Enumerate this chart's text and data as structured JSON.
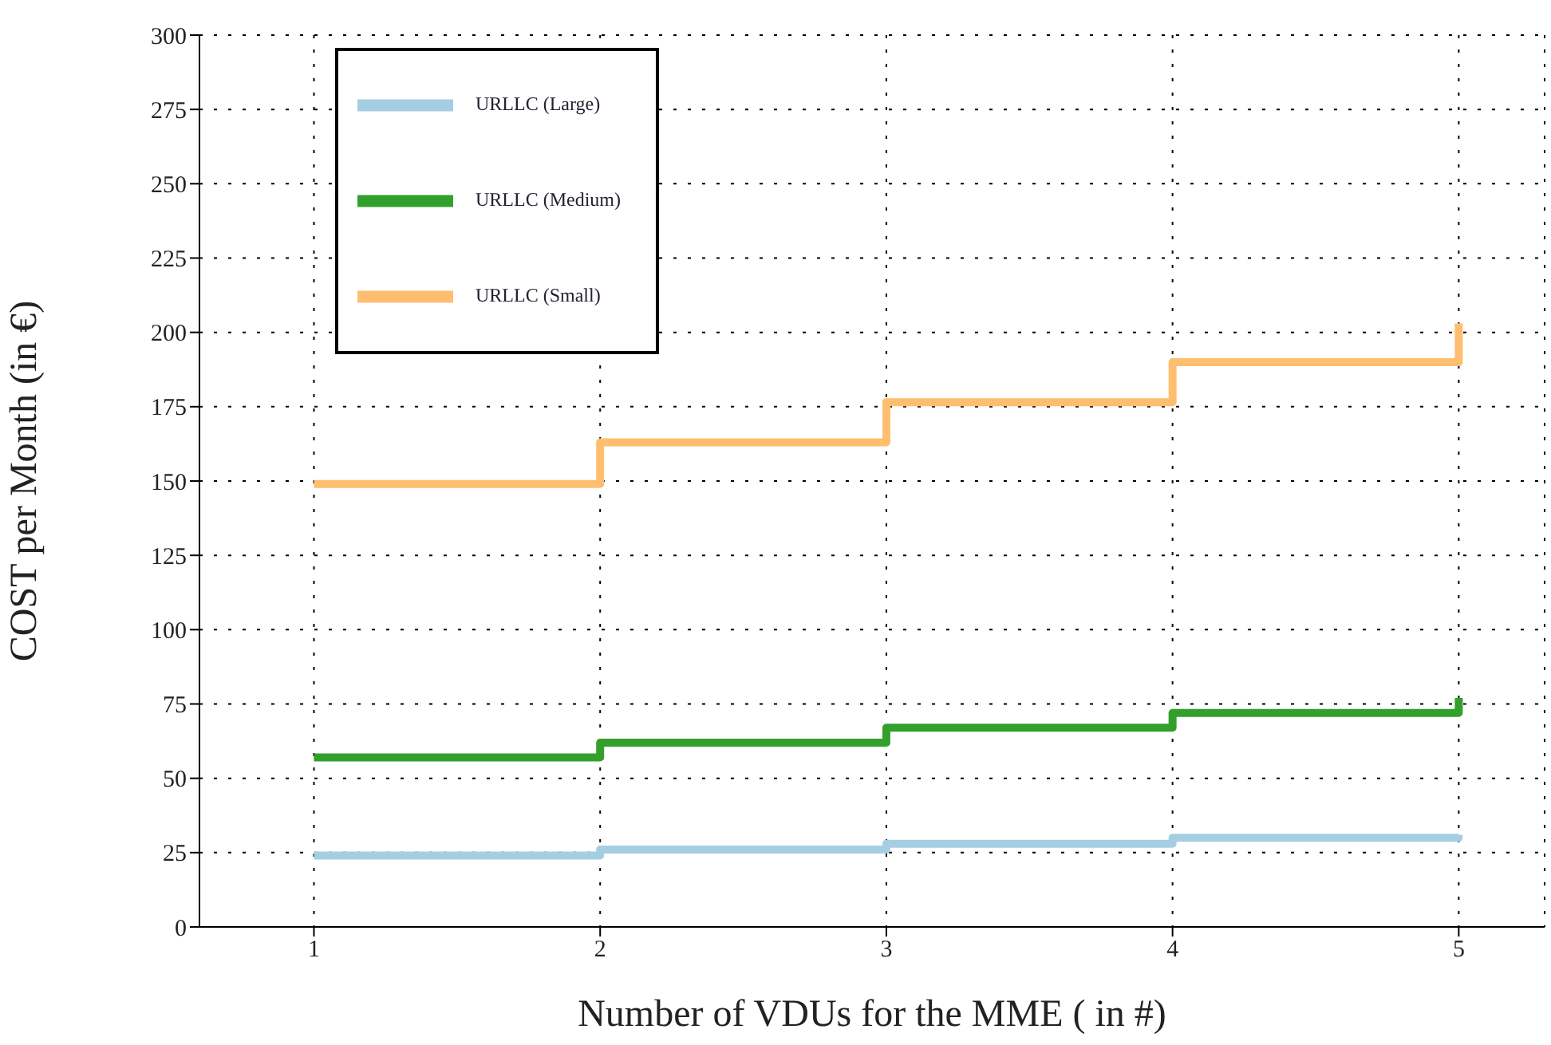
{
  "chart_data": {
    "type": "step",
    "xlabel": "Number of VDUs for the MME ( in #)",
    "ylabel": "COST per Month (in €)",
    "x": [
      1,
      2,
      3,
      4,
      5
    ],
    "xlim": [
      0.6,
      5.3
    ],
    "xticks": [
      1,
      2,
      3,
      4,
      5
    ],
    "ylim": [
      0,
      300
    ],
    "yticks": [
      0,
      25,
      50,
      75,
      100,
      125,
      150,
      175,
      200,
      225,
      250,
      275,
      300
    ],
    "grid": true,
    "legend": "top left",
    "line_style": "solid",
    "marker": "none",
    "series": [
      {
        "name": "URLLC (Large)",
        "color": "#a6cee3",
        "values": [
          24,
          26,
          28,
          30,
          31
        ]
      },
      {
        "name": "URLLC (Medium)",
        "color": "#33a02c",
        "values": [
          57,
          62,
          67,
          72,
          77
        ]
      },
      {
        "name": "URLLC (Small)",
        "color": "#fdbf6f",
        "values": [
          149,
          163,
          176.5,
          190,
          203
        ]
      }
    ]
  }
}
